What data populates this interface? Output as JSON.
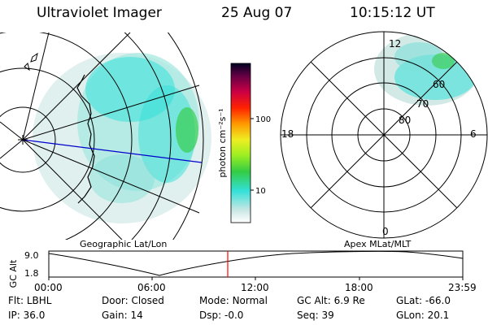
{
  "header": {
    "instrument": "Ultraviolet Imager",
    "date": "25 Aug 07",
    "time": "10:15:12 UT"
  },
  "geo_panel": {
    "label": "Geographic Lat/Lon"
  },
  "polar_panel": {
    "label": "Apex MLat/MLT",
    "mlt_labels": [
      "12",
      "18",
      "6",
      "0"
    ],
    "lat_labels": [
      "60",
      "70",
      "80"
    ]
  },
  "colorbar": {
    "unit": "photon cm⁻²s⁻¹",
    "ticks": [
      "100",
      "10"
    ]
  },
  "timeline": {
    "ylabel": "GC Alt",
    "y_ticks": [
      "9.0",
      "1.8"
    ],
    "x_ticks": [
      "00:00",
      "06:00",
      "12:00",
      "18:00",
      "23:59"
    ],
    "current_marker": "10:15"
  },
  "status": [
    [
      {
        "label": "Flt:",
        "value": "LBHL"
      },
      {
        "label": "Door:",
        "value": "Closed"
      },
      {
        "label": "Mode:",
        "value": "Normal"
      },
      {
        "label": "GC Alt:",
        "value": "6.9 Re"
      },
      {
        "label": "GLat:",
        "value": "-66.0"
      }
    ],
    [
      {
        "label": "IP:",
        "value": "36.0"
      },
      {
        "label": "Gain:",
        "value": "14"
      },
      {
        "label": "Dsp:",
        "value": "-0.0"
      },
      {
        "label": "Seq:",
        "value": "39"
      },
      {
        "label": "GLon:",
        "value": "20.1"
      }
    ]
  ],
  "colors": {
    "aurora_cyan": "#33e0d8",
    "aurora_green": "#33cc44",
    "haze": "#c8e4e0",
    "marker": "#ff0000",
    "meridian": "#0000cc"
  }
}
